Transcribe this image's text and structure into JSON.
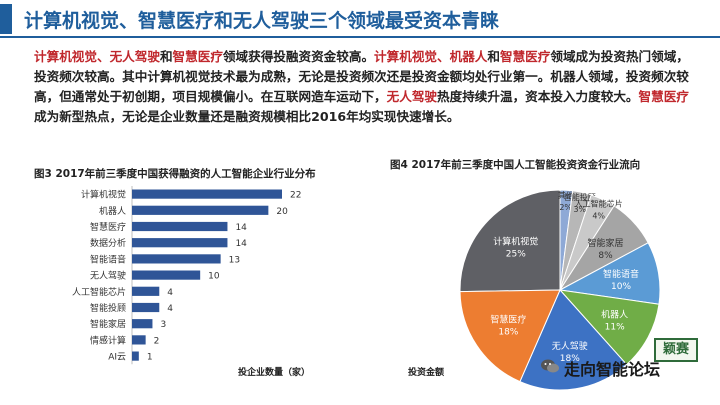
{
  "header": {
    "title": "计算机视觉、智慧医疗和无人驾驶三个领域最受资本青睐"
  },
  "paragraph": {
    "segments": [
      {
        "text": "计算机视觉、无人驾驶",
        "hl": true
      },
      {
        "text": "和",
        "hl": false
      },
      {
        "text": "智慧医疗",
        "hl": true
      },
      {
        "text": "领域获得投融资资金较高。",
        "hl": false
      },
      {
        "text": "计算机视觉、机器人",
        "hl": true
      },
      {
        "text": "和",
        "hl": false
      },
      {
        "text": "智慧医疗",
        "hl": true
      },
      {
        "text": "领域成为投资热门领域，投资频次较高。其中计算机视觉技术最为成熟，无论是投资频次还是投资金额均处行业第一。机器人领域，投资频次较高，但通常处于初创期，项目规模偏小。在互联网造车运动下，",
        "hl": false
      },
      {
        "text": "无人驾驶",
        "hl": true
      },
      {
        "text": "热度持续升温，资本投入力度较大。",
        "hl": false
      },
      {
        "text": "智慧医疗",
        "hl": true
      },
      {
        "text": "成为新型热点，无论是企业数量还是融资规模相比2016年均实现快速增长。",
        "hl": false
      }
    ]
  },
  "colors": {
    "title": "#1f5e9c",
    "highlight": "#c0282d",
    "bar": "#2f5597"
  },
  "watermark": {
    "text": "走向智能论坛",
    "logo": "颖赛"
  },
  "chart_data": [
    {
      "type": "bar",
      "orientation": "horizontal",
      "title": "图3  2017年前三季度中国获得融资的人工智能企业行业分布",
      "xlabel": "投企业数量（家）",
      "categories": [
        "计算机视觉",
        "机器人",
        "智慧医疗",
        "数据分析",
        "智能语音",
        "无人驾驶",
        "人工智能芯片",
        "智能投顾",
        "智能家居",
        "情感计算",
        "AI云"
      ],
      "values": [
        22,
        20,
        14,
        14,
        13,
        10,
        4,
        4,
        3,
        2,
        1
      ],
      "xlim": [
        0,
        22
      ],
      "grid": false
    },
    {
      "type": "pie",
      "title": "图4 2017年前三季度中国人工智能投资资金行业流向",
      "caption": "投资金额",
      "slices": [
        {
          "label": "计算机视觉",
          "value": 25,
          "pct": "25%",
          "color": "#5f6065"
        },
        {
          "label": "其他",
          "value": 2,
          "pct": "2%",
          "color": "#8ea9d6"
        },
        {
          "label": "智能投顾",
          "value": 3,
          "pct": "3%",
          "color": "#b7b7b7"
        },
        {
          "label": "人工智能芯片",
          "value": 4,
          "pct": "4%",
          "color": "#c9c9c9"
        },
        {
          "label": "智能家居",
          "value": 8,
          "pct": "8%",
          "color": "#a5a5a5"
        },
        {
          "label": "智能语音",
          "value": 10,
          "pct": "10%",
          "color": "#5b9bd5"
        },
        {
          "label": "机器人",
          "value": 11,
          "pct": "11%",
          "color": "#70ad47"
        },
        {
          "label": "无人驾驶",
          "value": 18,
          "pct": "18%",
          "color": "#3d72c4"
        },
        {
          "label": "智慧医疗",
          "value": 18,
          "pct": "18%",
          "color": "#ed7d31"
        }
      ]
    }
  ]
}
